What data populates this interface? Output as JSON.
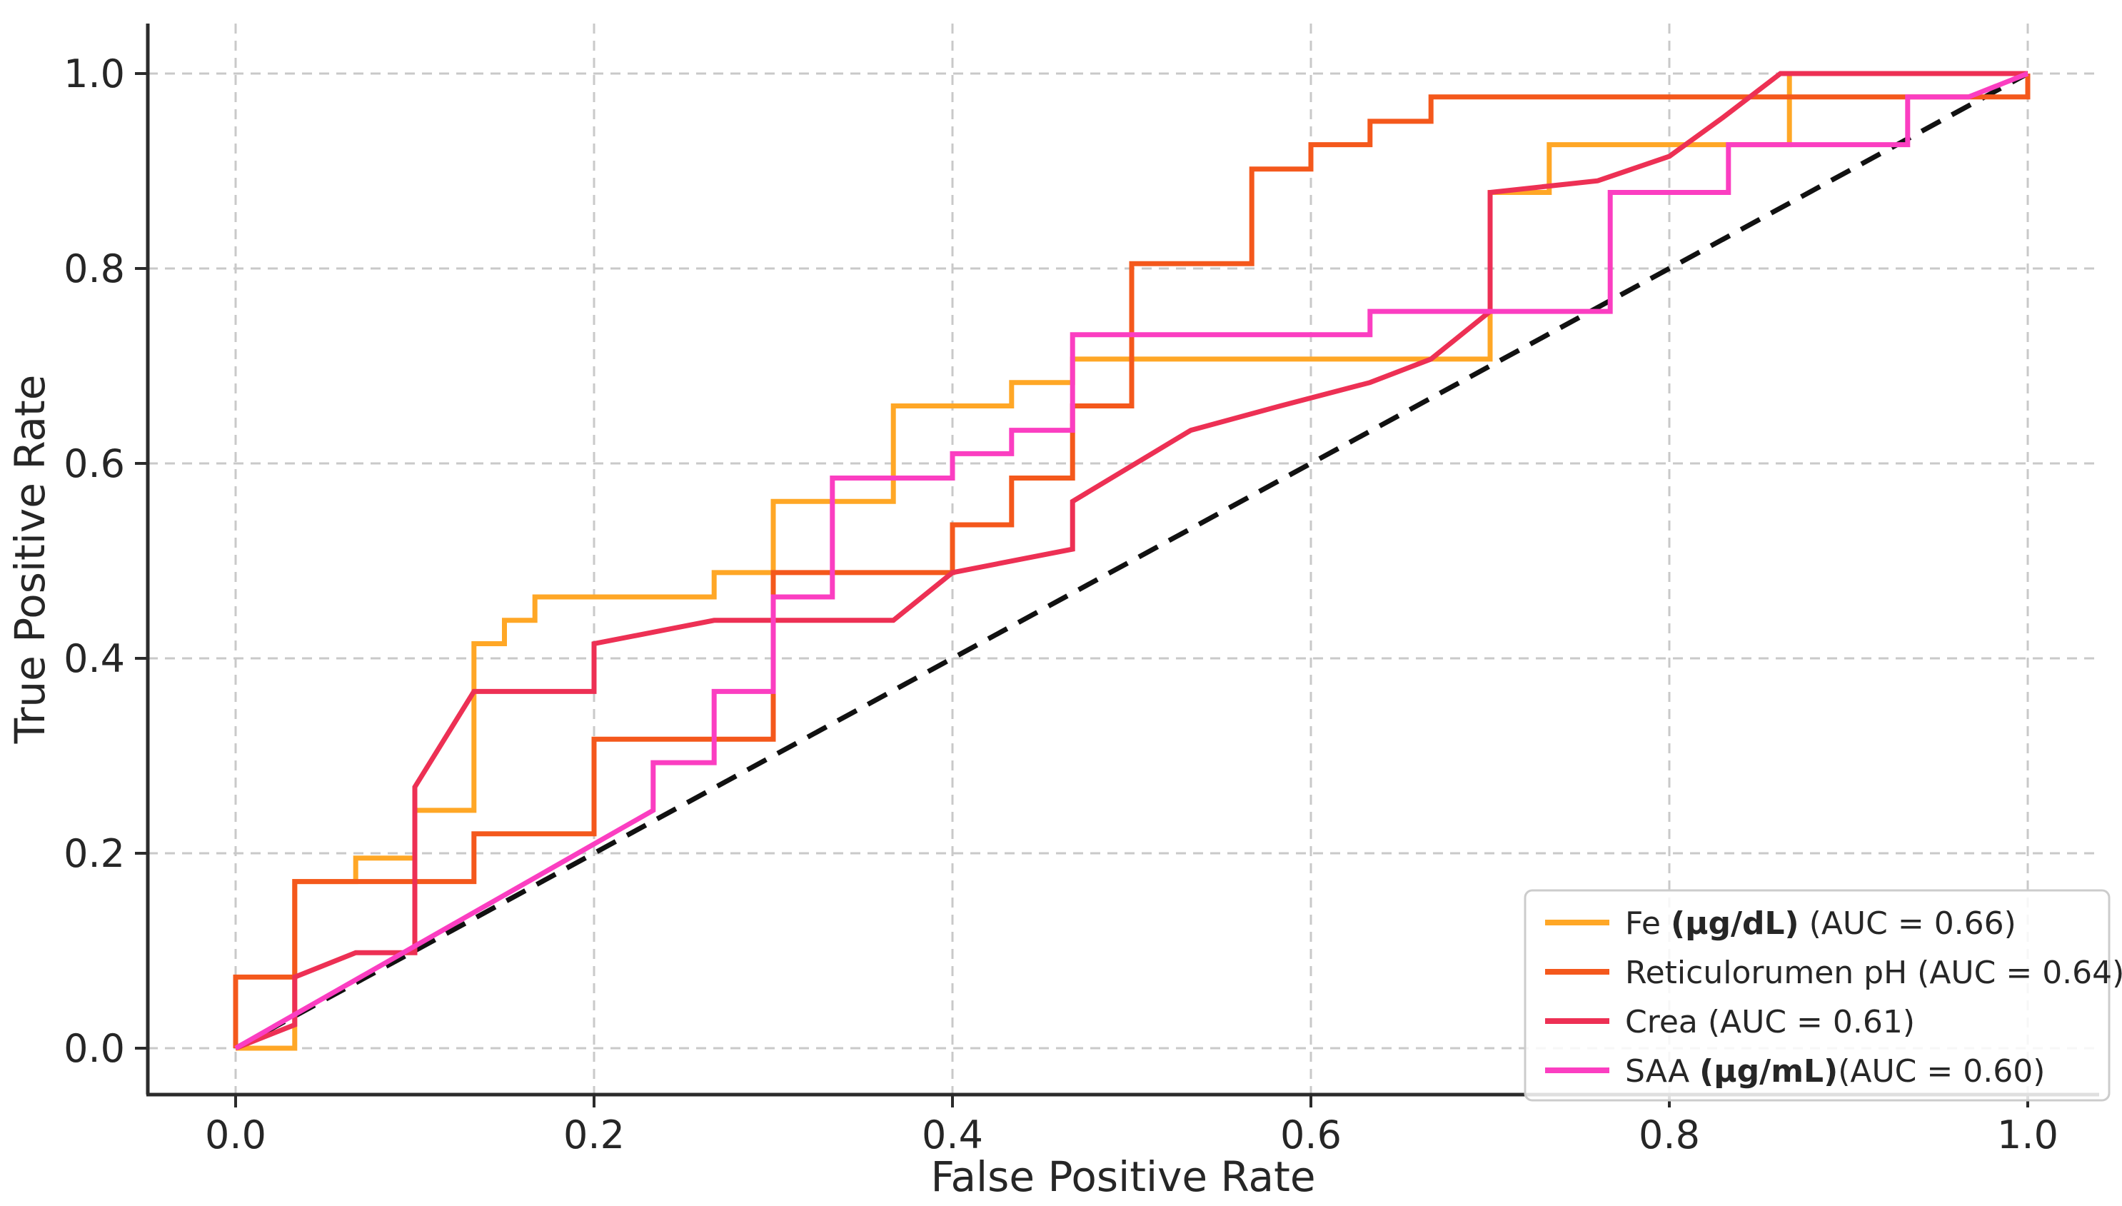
{
  "chart_data": {
    "type": "line",
    "subtype": "roc-curves",
    "title": "",
    "xlabel": "False Positive Rate",
    "ylabel": "True Positive Rate",
    "xlim": [
      -0.05,
      1.05
    ],
    "ylim": [
      -0.05,
      1.05
    ],
    "grid": "dashed",
    "legend_position": "lower right",
    "x_ticks": [
      0.0,
      0.2,
      0.4,
      0.6,
      0.8,
      1.0
    ],
    "y_ticks": [
      0.0,
      0.2,
      0.4,
      0.6,
      0.8,
      1.0
    ],
    "x_tick_labels": [
      "0.0",
      "0.2",
      "0.4",
      "0.6",
      "0.8",
      "1.0"
    ],
    "y_tick_labels": [
      "0.0",
      "0.2",
      "0.4",
      "0.6",
      "0.8",
      "1.0"
    ],
    "diagonal": {
      "name": "chance-line",
      "style": "dashed",
      "color": "#111111",
      "points": [
        [
          0,
          0
        ],
        [
          1,
          1
        ]
      ]
    },
    "series": [
      {
        "name": "Fe",
        "legend_label": "Fe (μg/dL) (AUC = 0.66)",
        "label_pre": "Fe ",
        "label_bold": "(μg/dL)",
        "label_post": " (AUC = 0.66)",
        "auc": 0.66,
        "color": "#FFA726",
        "points": [
          [
            0,
            0
          ],
          [
            0.033,
            0
          ],
          [
            0.033,
            0.171
          ],
          [
            0.067,
            0.171
          ],
          [
            0.067,
            0.195
          ],
          [
            0.1,
            0.195
          ],
          [
            0.1,
            0.244
          ],
          [
            0.133,
            0.244
          ],
          [
            0.133,
            0.415
          ],
          [
            0.15,
            0.415
          ],
          [
            0.15,
            0.439
          ],
          [
            0.167,
            0.439
          ],
          [
            0.167,
            0.463
          ],
          [
            0.267,
            0.463
          ],
          [
            0.267,
            0.488
          ],
          [
            0.3,
            0.488
          ],
          [
            0.3,
            0.561
          ],
          [
            0.367,
            0.561
          ],
          [
            0.367,
            0.659
          ],
          [
            0.433,
            0.659
          ],
          [
            0.433,
            0.683
          ],
          [
            0.467,
            0.683
          ],
          [
            0.467,
            0.707
          ],
          [
            0.7,
            0.707
          ],
          [
            0.7,
            0.878
          ],
          [
            0.733,
            0.878
          ],
          [
            0.733,
            0.927
          ],
          [
            0.867,
            0.927
          ],
          [
            0.867,
            1
          ],
          [
            1,
            1
          ]
        ]
      },
      {
        "name": "Reticulorumen pH",
        "legend_label": "Reticulorumen pH (AUC = 0.64)",
        "label_pre": "Reticulorumen pH ",
        "label_bold": "",
        "label_post": "(AUC = 0.64)",
        "auc": 0.64,
        "color": "#F4581C",
        "points": [
          [
            0,
            0
          ],
          [
            0,
            0.073
          ],
          [
            0.033,
            0.073
          ],
          [
            0.033,
            0.171
          ],
          [
            0.133,
            0.171
          ],
          [
            0.133,
            0.22
          ],
          [
            0.2,
            0.22
          ],
          [
            0.2,
            0.317
          ],
          [
            0.3,
            0.317
          ],
          [
            0.3,
            0.488
          ],
          [
            0.4,
            0.488
          ],
          [
            0.4,
            0.537
          ],
          [
            0.433,
            0.537
          ],
          [
            0.433,
            0.585
          ],
          [
            0.467,
            0.585
          ],
          [
            0.467,
            0.659
          ],
          [
            0.5,
            0.659
          ],
          [
            0.5,
            0.805
          ],
          [
            0.567,
            0.805
          ],
          [
            0.567,
            0.902
          ],
          [
            0.6,
            0.902
          ],
          [
            0.6,
            0.927
          ],
          [
            0.633,
            0.927
          ],
          [
            0.633,
            0.951
          ],
          [
            0.667,
            0.951
          ],
          [
            0.667,
            0.976
          ],
          [
            1,
            0.976
          ],
          [
            1,
            1
          ]
        ]
      },
      {
        "name": "Crea",
        "legend_label": "Crea (AUC = 0.61)",
        "label_pre": "Crea ",
        "label_bold": "",
        "label_post": "(AUC = 0.61)",
        "auc": 0.61,
        "color": "#ED3054",
        "points": [
          [
            0,
            0
          ],
          [
            0.033,
            0.024
          ],
          [
            0.033,
            0.073
          ],
          [
            0.067,
            0.098
          ],
          [
            0.1,
            0.098
          ],
          [
            0.1,
            0.268
          ],
          [
            0.133,
            0.366
          ],
          [
            0.2,
            0.366
          ],
          [
            0.2,
            0.415
          ],
          [
            0.267,
            0.439
          ],
          [
            0.367,
            0.439
          ],
          [
            0.4,
            0.488
          ],
          [
            0.467,
            0.512
          ],
          [
            0.467,
            0.561
          ],
          [
            0.533,
            0.634
          ],
          [
            0.583,
            0.659
          ],
          [
            0.633,
            0.683
          ],
          [
            0.667,
            0.707
          ],
          [
            0.7,
            0.756
          ],
          [
            0.7,
            0.878
          ],
          [
            0.76,
            0.89
          ],
          [
            0.8,
            0.915
          ],
          [
            0.83,
            0.955
          ],
          [
            0.862,
            1
          ],
          [
            1,
            1
          ]
        ]
      },
      {
        "name": "SAA",
        "legend_label": "SAA (μg/mL)(AUC = 0.60)",
        "label_pre": "SAA ",
        "label_bold": "(μg/mL)",
        "label_post": "(AUC = 0.60)",
        "auc": 0.6,
        "color": "#FB3EC1",
        "points": [
          [
            0,
            0
          ],
          [
            0.233,
            0.244
          ],
          [
            0.233,
            0.293
          ],
          [
            0.267,
            0.293
          ],
          [
            0.267,
            0.366
          ],
          [
            0.3,
            0.366
          ],
          [
            0.3,
            0.463
          ],
          [
            0.333,
            0.463
          ],
          [
            0.333,
            0.585
          ],
          [
            0.4,
            0.585
          ],
          [
            0.4,
            0.61
          ],
          [
            0.433,
            0.61
          ],
          [
            0.433,
            0.634
          ],
          [
            0.467,
            0.634
          ],
          [
            0.467,
            0.732
          ],
          [
            0.633,
            0.732
          ],
          [
            0.633,
            0.756
          ],
          [
            0.767,
            0.756
          ],
          [
            0.767,
            0.878
          ],
          [
            0.833,
            0.878
          ],
          [
            0.833,
            0.927
          ],
          [
            0.933,
            0.927
          ],
          [
            0.933,
            0.976
          ],
          [
            0.967,
            0.976
          ],
          [
            1,
            1
          ]
        ]
      }
    ]
  },
  "style": {
    "background": "#ffffff",
    "grid_color": "#c9c9c9",
    "spine_color": "#2b2b2b",
    "text_color": "#262626",
    "legend_border": "#cccccc",
    "legend_bg": "rgba(255,255,255,0.85)"
  }
}
